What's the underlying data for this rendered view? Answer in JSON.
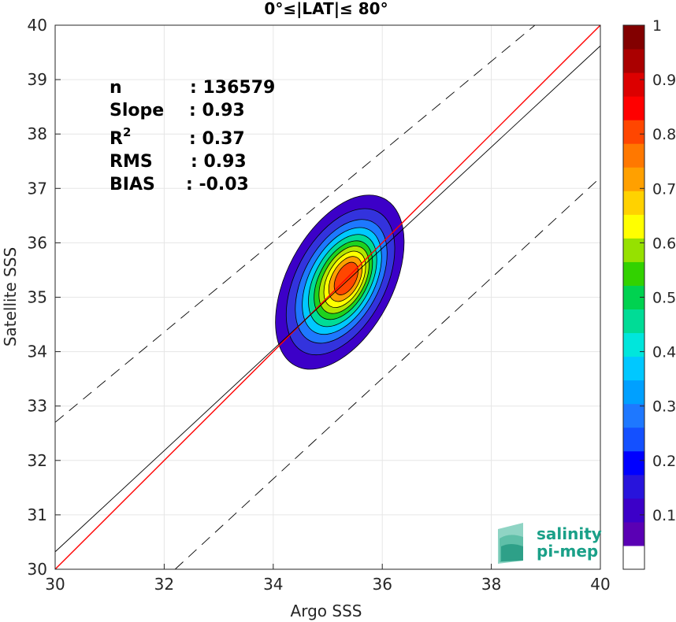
{
  "chart_data": {
    "type": "contour-density-scatter",
    "title": "0°≤|LAT|≤ 80°",
    "xlabel": "Argo SSS",
    "ylabel": "Satellite SSS",
    "xlim": [
      30,
      40
    ],
    "ylim": [
      30,
      40
    ],
    "xticks": [
      "30",
      "32",
      "34",
      "36",
      "38",
      "40"
    ],
    "yticks": [
      "30",
      "31",
      "32",
      "33",
      "34",
      "35",
      "36",
      "37",
      "38",
      "39",
      "40"
    ],
    "grid": true,
    "stats": [
      {
        "label": "n",
        "value": ": 136579"
      },
      {
        "label": "Slope",
        "value": ": 0.93"
      },
      {
        "label": "R",
        "sup": "2",
        "value": ": 0.37"
      },
      {
        "label": "RMS",
        "value": ": 0.93"
      },
      {
        "label": "BIAS",
        "value": ": -0.03"
      }
    ],
    "lines": [
      {
        "kind": "identity",
        "color": "#ff0000",
        "points": [
          [
            30,
            30
          ],
          [
            40,
            40
          ]
        ]
      },
      {
        "kind": "regression",
        "color": "#000000",
        "points": [
          [
            30,
            30.32
          ],
          [
            40,
            39.62
          ]
        ]
      },
      {
        "kind": "upper-bound-dashed",
        "color": "#000000",
        "points": [
          [
            30,
            32.7
          ],
          [
            38.8,
            40
          ]
        ]
      },
      {
        "kind": "lower-bound-dashed",
        "color": "#000000",
        "points": [
          [
            32.2,
            30
          ],
          [
            40,
            37.2
          ]
        ]
      }
    ],
    "density_center": [
      35.35,
      35.35
    ],
    "density_levels": [
      {
        "level": 0.05,
        "color": "#3c00c8",
        "rx": 1.55,
        "ry": 0.92
      },
      {
        "level": 0.15,
        "color": "#3333dd",
        "rx": 1.3,
        "ry": 0.78
      },
      {
        "level": 0.25,
        "color": "#1e78ff",
        "rx": 1.1,
        "ry": 0.66
      },
      {
        "level": 0.35,
        "color": "#00c8ff",
        "rx": 0.95,
        "ry": 0.57
      },
      {
        "level": 0.45,
        "color": "#00dc96",
        "rx": 0.82,
        "ry": 0.49
      },
      {
        "level": 0.55,
        "color": "#1ed21e",
        "rx": 0.7,
        "ry": 0.42
      },
      {
        "level": 0.6,
        "color": "#b4e600",
        "rx": 0.6,
        "ry": 0.36
      },
      {
        "level": 0.65,
        "color": "#ffff00",
        "rx": 0.5,
        "ry": 0.3
      },
      {
        "level": 0.75,
        "color": "#ffa000",
        "rx": 0.4,
        "ry": 0.24
      },
      {
        "level": 0.85,
        "color": "#ff4600",
        "rx": 0.29,
        "ry": 0.17
      }
    ],
    "colorbar": {
      "ticks": [
        "0.1",
        "0.2",
        "0.3",
        "0.4",
        "0.5",
        "0.6",
        "0.7",
        "0.8",
        "0.9",
        "1"
      ],
      "min": 0,
      "max": 1,
      "colors": [
        "#ffffff",
        "#5a00b4",
        "#3c00c8",
        "#2814dc",
        "#0000ff",
        "#1450ff",
        "#1e78ff",
        "#00a0ff",
        "#00c8ff",
        "#00e6dc",
        "#00dc96",
        "#00d250",
        "#32d200",
        "#96e100",
        "#ffff00",
        "#ffd200",
        "#ffa000",
        "#ff7800",
        "#ff4600",
        "#ff0000",
        "#dc0000",
        "#aa0000",
        "#820000"
      ]
    }
  },
  "logo": {
    "line1": "salinity",
    "line2": "pi-mep",
    "color": "#1aa088"
  }
}
